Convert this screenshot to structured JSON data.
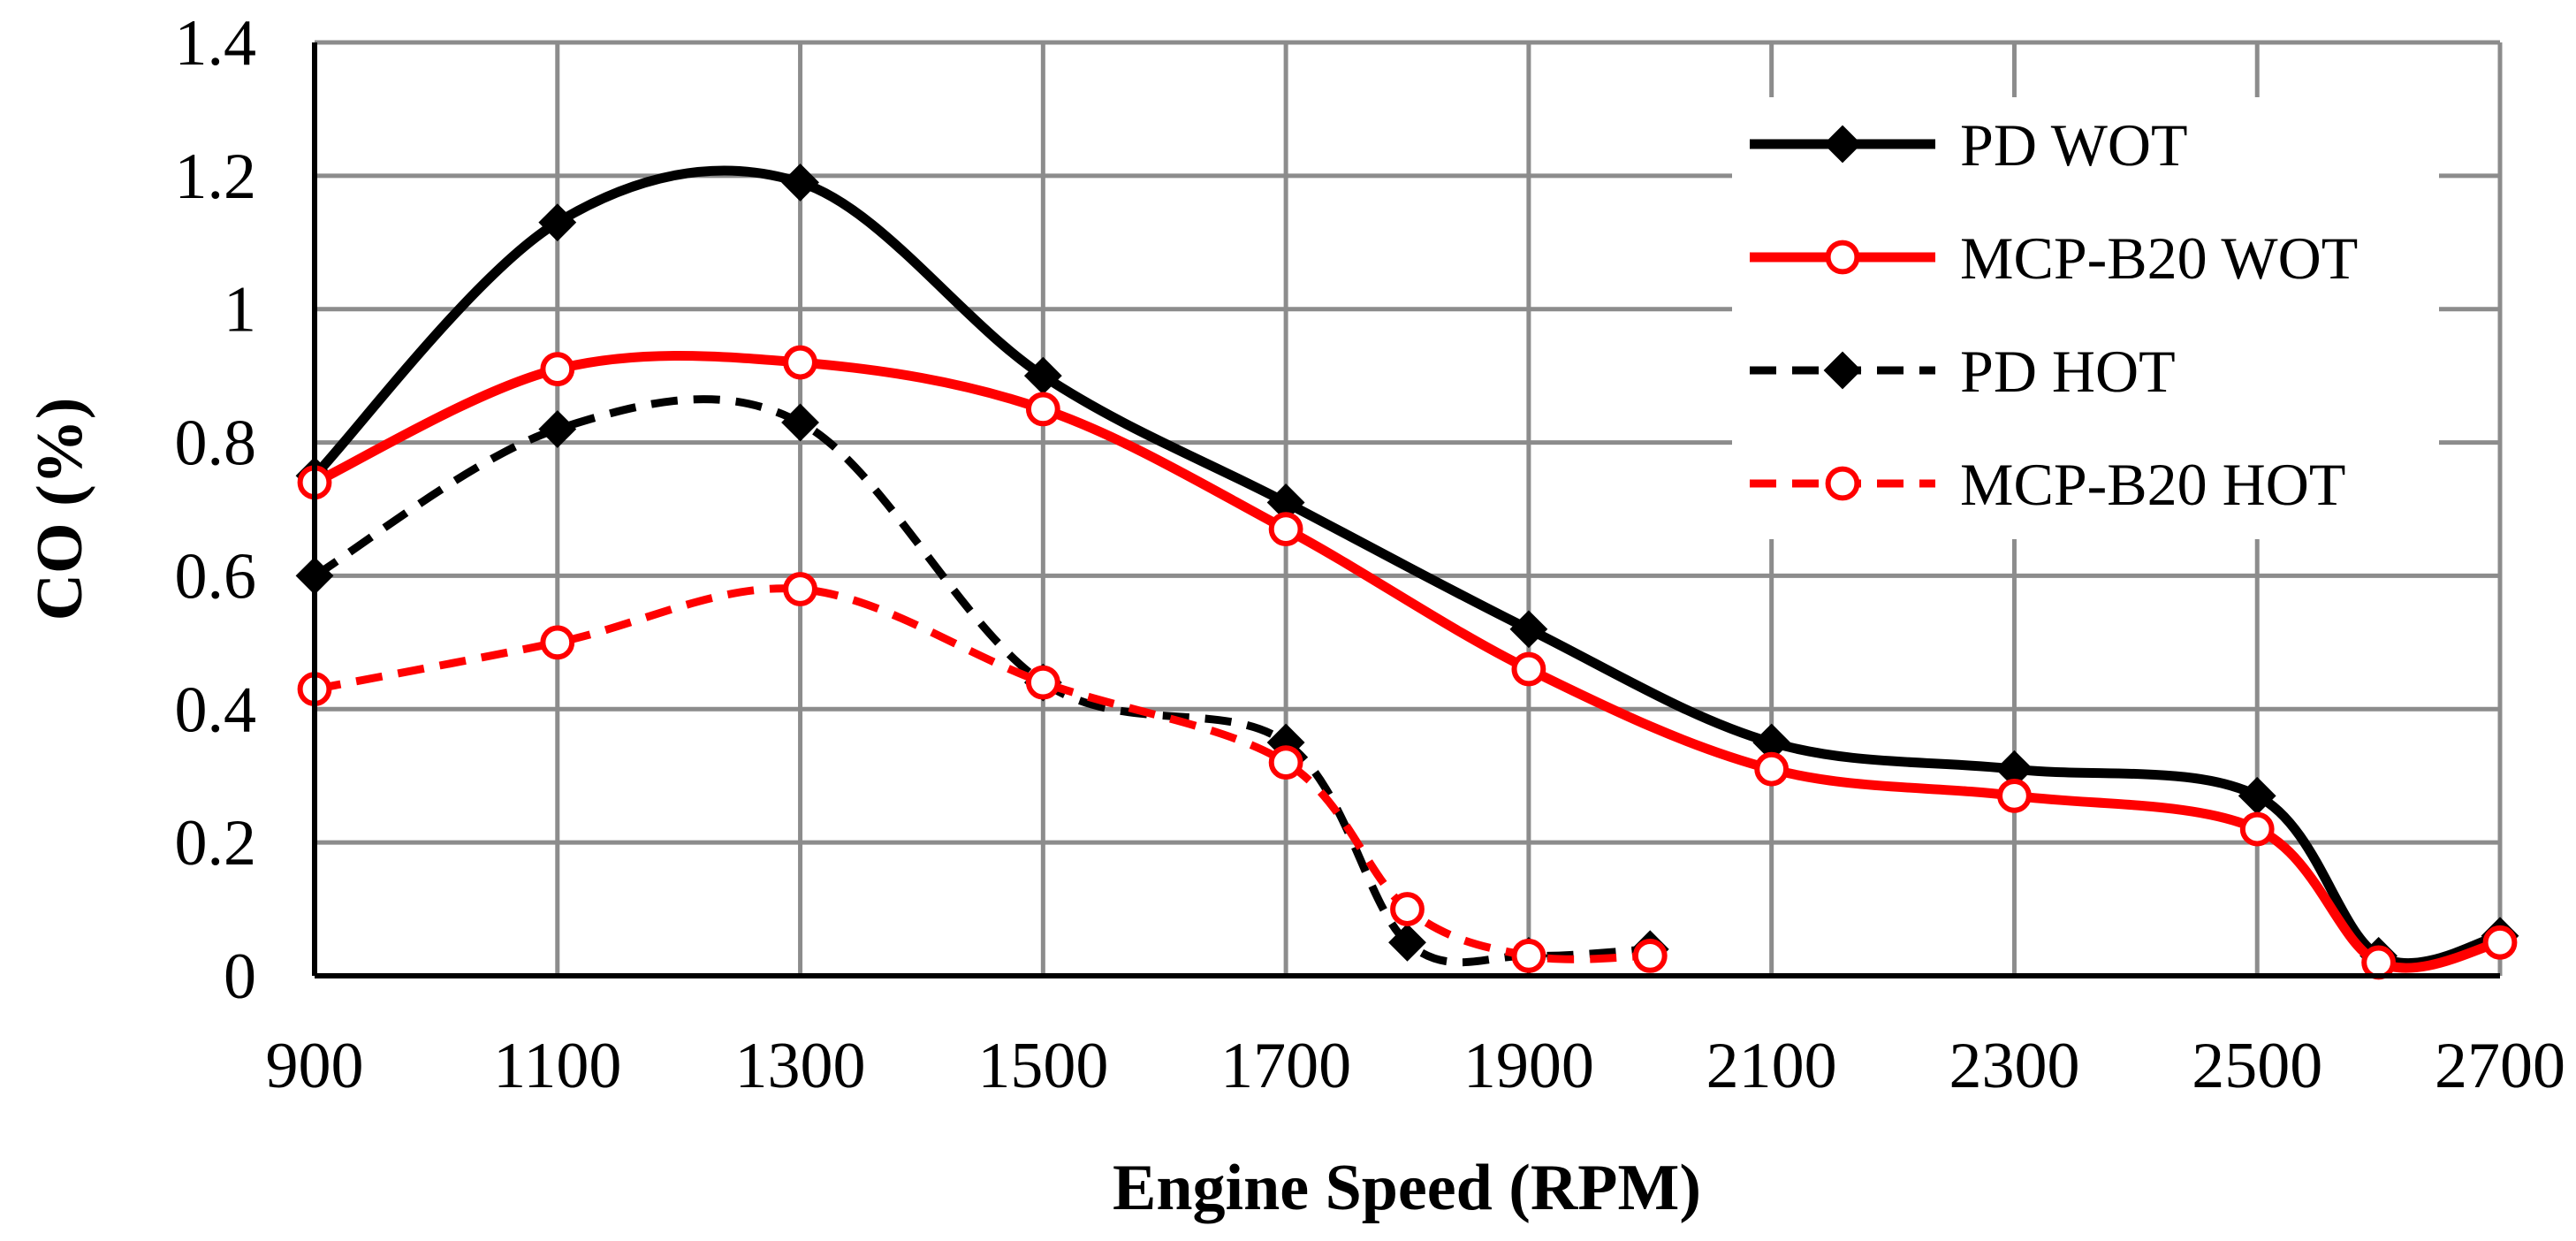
{
  "chart_data": {
    "type": "line",
    "title": "",
    "xlabel": "Engine Speed (RPM)",
    "ylabel": "CO (%)",
    "xlim": [
      900,
      2700
    ],
    "ylim": [
      0,
      1.4
    ],
    "x_ticks": [
      "900",
      "1100",
      "1300",
      "1500",
      "1700",
      "1900",
      "2100",
      "2300",
      "2500",
      "2700"
    ],
    "y_ticks": [
      "0",
      "0.2",
      "0.4",
      "0.6",
      "0.8",
      "1",
      "1.2",
      "1.4"
    ],
    "grid": true,
    "legend_position": "top-right",
    "series": [
      {
        "name": "PD WOT",
        "color": "#000000",
        "style": "solid",
        "marker": "diamond",
        "x": [
          900,
          1100,
          1300,
          1500,
          1700,
          1900,
          2100,
          2300,
          2500,
          2600,
          2700
        ],
        "values": [
          0.75,
          1.13,
          1.19,
          0.9,
          0.71,
          0.52,
          0.35,
          0.31,
          0.27,
          0.03,
          0.06
        ]
      },
      {
        "name": "MCP-B20 WOT",
        "color": "#ff0000",
        "style": "solid",
        "marker": "circle",
        "x": [
          900,
          1100,
          1300,
          1500,
          1700,
          1900,
          2100,
          2300,
          2500,
          2600,
          2700
        ],
        "values": [
          0.74,
          0.91,
          0.92,
          0.85,
          0.67,
          0.46,
          0.31,
          0.27,
          0.22,
          0.02,
          0.05
        ]
      },
      {
        "name": "PD HOT",
        "color": "#000000",
        "style": "dashed",
        "marker": "diamond",
        "x": [
          900,
          1100,
          1300,
          1500,
          1700,
          1800,
          1900,
          2000
        ],
        "values": [
          0.6,
          0.82,
          0.83,
          0.44,
          0.35,
          0.05,
          0.03,
          0.04
        ]
      },
      {
        "name": "MCP-B20 HOT",
        "color": "#ff0000",
        "style": "dashed",
        "marker": "circle",
        "x": [
          900,
          1100,
          1300,
          1500,
          1700,
          1800,
          1900,
          2000
        ],
        "values": [
          0.43,
          0.5,
          0.58,
          0.44,
          0.32,
          0.1,
          0.03,
          0.03
        ]
      }
    ]
  }
}
